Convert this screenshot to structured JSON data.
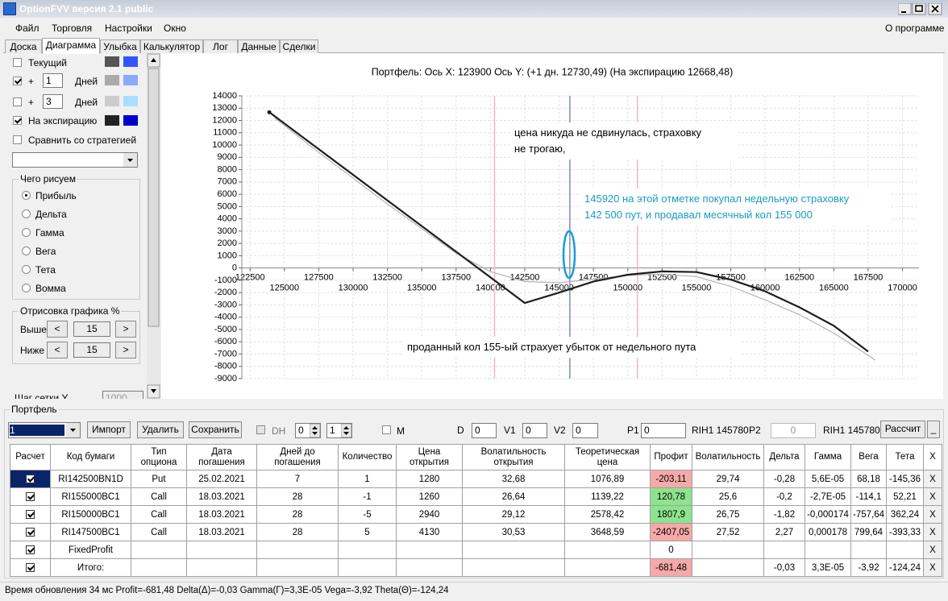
{
  "window": {
    "title": "OptionFVV версия 2.1 public"
  },
  "menu": {
    "items": [
      "Файл",
      "Торговля",
      "Настройки",
      "Окно"
    ],
    "about": "О программе"
  },
  "tabs": [
    "Доска",
    "Диаграмма",
    "Улыбка",
    "Калькулятор",
    "Лог",
    "Данные",
    "Сделки"
  ],
  "left_panel": {
    "current": "Текущий",
    "plus": "+",
    "days_1": "1",
    "days_3": "3",
    "days": "Дней",
    "expiration": "На экспирацию",
    "compare": "Сравнить со стратегией",
    "draw_group": "Чего рисуем",
    "radios": [
      "Прибыль",
      "Дельта",
      "Гамма",
      "Вега",
      "Тета",
      "Вомма"
    ],
    "render_group": "Отрисовка графика %",
    "above": "Выше",
    "below": "Ниже",
    "above_value": "15",
    "below_value": "15",
    "prev": "<",
    "next": ">",
    "grid_step": "Шаг сетки Y",
    "grid_step_value": "1000"
  },
  "chart_data": {
    "type": "line",
    "title": "Портфель:  Ось X:  123900 Ось Y:  (+1 дн.  12730,49)  (На экспирацию  12668,48)",
    "xlim": [
      121900,
      171200
    ],
    "ylim": [
      -9000,
      14000
    ],
    "xticks": [
      122500,
      125000,
      127500,
      130000,
      132500,
      135000,
      137500,
      140000,
      142500,
      145000,
      147500,
      150000,
      152500,
      155000,
      157500,
      160000,
      162500,
      165000,
      167500,
      170000
    ],
    "yticks": [
      14000,
      13000,
      12000,
      11000,
      10000,
      9000,
      8000,
      7000,
      6000,
      5000,
      4000,
      3000,
      2000,
      1000,
      0,
      -1000,
      -2000,
      -3000,
      -4000,
      -5000,
      -6000,
      -7000,
      -8000,
      -9000
    ],
    "grid": true,
    "vlines": [
      {
        "value": 140300,
        "color": "#f5b4c4"
      },
      {
        "value": 145780,
        "color": "#7c8fb8"
      },
      {
        "value": 150700,
        "color": "#f5b4c4"
      }
    ],
    "series": [
      {
        "color": "#b4b4b4",
        "x": [
          124300,
          127500,
          130000,
          132500,
          135000,
          137500,
          140000,
          142500,
          145000,
          147500,
          150000,
          152500,
          155000,
          157500,
          160000,
          162500,
          165000,
          167500,
          168000
        ],
        "values": [
          12200,
          9400,
          7300,
          5200,
          3200,
          1200,
          -300,
          -1100,
          -1200,
          -900,
          -600,
          -500,
          -700,
          -1500,
          -2600,
          -3800,
          -5300,
          -7100,
          -7500
        ]
      },
      {
        "color": "#1e1e1e",
        "x": [
          123900,
          142500,
          145000,
          147500,
          150000,
          152500,
          155000,
          157500,
          160000,
          162500,
          165000,
          167500
        ],
        "values": [
          12668,
          -2850,
          -2000,
          -1100,
          -550,
          -280,
          -330,
          -950,
          -1900,
          -3200,
          -4700,
          -6800
        ]
      }
    ],
    "annotations": [
      [
        "цена никуда не сдвинулась, страховку",
        "не трогаю,"
      ],
      [
        "145920 на этой отметке покупал недельную страховку",
        "142 500 пут, и продавал месячный кол 155 000"
      ],
      [
        "проданный кол 155-ый страхует убыток от недельного пута"
      ]
    ]
  },
  "portfolio": {
    "title": "Портфель",
    "toolbar": {
      "combo": "1",
      "import": "Импорт",
      "delete": "Удалить",
      "save": "Сохранить",
      "dh": "DH",
      "spin1": "0",
      "spin2": "1",
      "m": "M",
      "d": "D",
      "d_value": "0",
      "v1": "V1",
      "v1_value": "0",
      "v2": "V2",
      "v2_value": "0",
      "p1": "P1",
      "p1_value": "0",
      "p1_instrument": "RIH1 145780",
      "p2": "P2",
      "p2_value": "0",
      "p2_instrument": "RIH1 145780",
      "calc": "Рассчит",
      "min": "_"
    },
    "table": {
      "headers": [
        "Расчет",
        "Код бумаги",
        "Тип опциона",
        "Дата погашения",
        "Дней до погашения",
        "Количество",
        "Цена открытия",
        "Волатильность открытия",
        "Теоретическая цена",
        "Профит",
        "Волатильность",
        "Дельта",
        "Гамма",
        "Вега",
        "Тета",
        "X"
      ],
      "close_label": "X",
      "rows": [
        [
          "RI142500BN1D",
          "Put",
          "25.02.2021",
          "7",
          "1",
          "1280",
          "32,68",
          "1076,89",
          "-203,11",
          "29,74",
          "-0,28",
          "5,6E-05",
          "68,18",
          "-145,36"
        ],
        [
          "RI155000BC1",
          "Call",
          "18.03.2021",
          "28",
          "-1",
          "1260",
          "26,64",
          "1139,22",
          "120,78",
          "25,6",
          "-0,2",
          "-2,7E-05",
          "-114,1",
          "52,21"
        ],
        [
          "RI150000BC1",
          "Call",
          "18.03.2021",
          "28",
          "-5",
          "2940",
          "29,12",
          "2578,42",
          "1807,9",
          "26,75",
          "-1,82",
          "-0,000174",
          "-757,64",
          "362,24"
        ],
        [
          "RI147500BC1",
          "Call",
          "18.03.2021",
          "28",
          "5",
          "4130",
          "30,53",
          "3648,59",
          "-2407,05",
          "27,52",
          "2,27",
          "0,000178",
          "799,64",
          "-393,33"
        ],
        [
          "FixedProfit",
          null,
          null,
          null,
          null,
          null,
          null,
          null,
          "0",
          null,
          null,
          null,
          null,
          null
        ],
        [
          "Итого:",
          null,
          null,
          null,
          null,
          null,
          null,
          null,
          "-681,48",
          null,
          "-0,03",
          "3,3E-05",
          "-3,92",
          "-124,24"
        ]
      ]
    }
  },
  "status": "Время обновления 34 мс  Profit=-681,48 Delta(Δ)=-0,03 Gamma(Γ)=3,3E-05 Vega=-3,92 Theta(Θ)=-124,24"
}
